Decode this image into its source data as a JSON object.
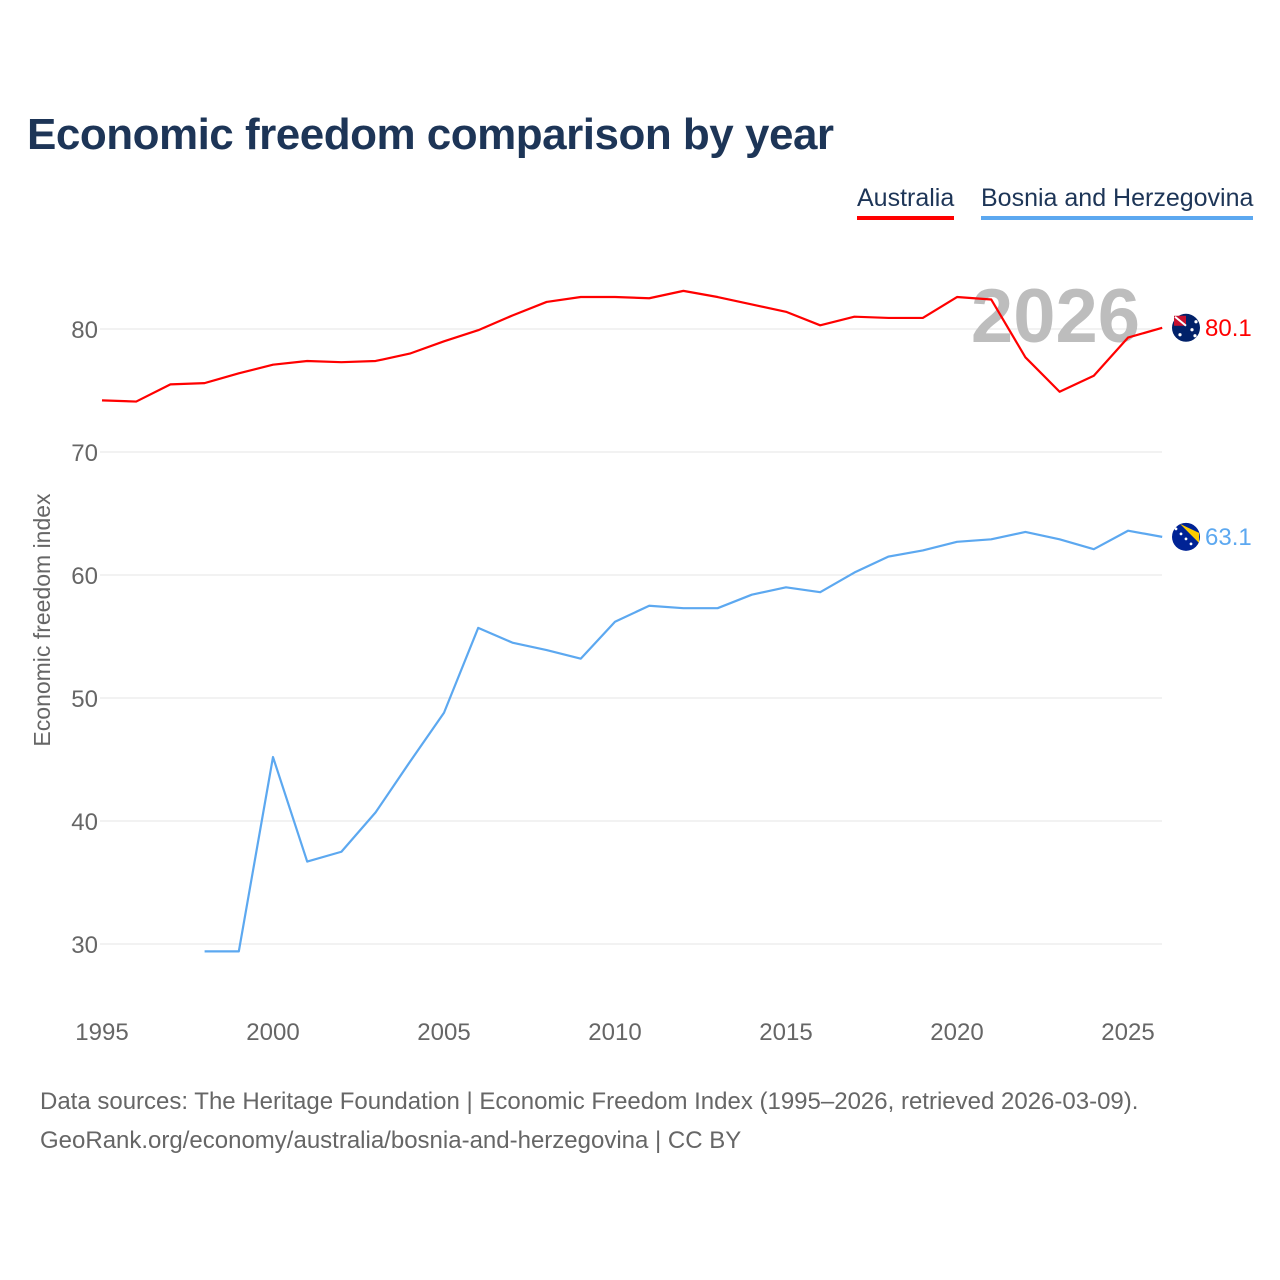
{
  "chart_data": {
    "type": "line",
    "title": "Economic freedom comparison by year",
    "ylabel": "Economic freedom index",
    "xlabel": "",
    "xlim": [
      1995,
      2026
    ],
    "ylim": [
      25,
      87
    ],
    "yticks": [
      30,
      40,
      50,
      60,
      70,
      80
    ],
    "xticks": [
      1995,
      2000,
      2005,
      2010,
      2015,
      2020,
      2025
    ],
    "grid": true,
    "legend_position": "top-right",
    "year_watermark": "2026",
    "series": [
      {
        "name": "Australia",
        "color": "#ff0000",
        "end_label": "80.1",
        "flag": "australia-flag",
        "x": [
          1995,
          1996,
          1997,
          1998,
          1999,
          2000,
          2001,
          2002,
          2003,
          2004,
          2005,
          2006,
          2007,
          2008,
          2009,
          2010,
          2011,
          2012,
          2013,
          2014,
          2015,
          2016,
          2017,
          2018,
          2019,
          2020,
          2021,
          2022,
          2023,
          2024,
          2025,
          2026
        ],
        "values": [
          74.2,
          74.1,
          75.5,
          75.6,
          76.4,
          77.1,
          77.4,
          77.3,
          77.4,
          78.0,
          79.0,
          79.9,
          81.1,
          82.2,
          82.6,
          82.6,
          82.5,
          83.1,
          82.6,
          82.0,
          81.4,
          80.3,
          81.0,
          80.9,
          80.9,
          82.6,
          82.4,
          77.7,
          74.9,
          76.2,
          79.3,
          80.1
        ]
      },
      {
        "name": "Bosnia and Herzegovina",
        "color": "#5ca8f0",
        "end_label": "63.1",
        "flag": "bosnia-flag",
        "x": [
          1998,
          1999,
          2000,
          2001,
          2002,
          2003,
          2004,
          2005,
          2006,
          2007,
          2008,
          2009,
          2010,
          2011,
          2012,
          2013,
          2014,
          2015,
          2016,
          2017,
          2018,
          2019,
          2020,
          2021,
          2022,
          2023,
          2024,
          2025,
          2026
        ],
        "values": [
          29.4,
          29.4,
          45.2,
          36.7,
          37.5,
          40.7,
          44.8,
          48.8,
          55.7,
          54.5,
          53.9,
          53.2,
          56.2,
          57.5,
          57.3,
          57.3,
          58.4,
          59.0,
          58.6,
          60.2,
          61.5,
          62.0,
          62.7,
          62.9,
          63.5,
          62.9,
          62.1,
          63.6,
          63.1
        ]
      }
    ]
  },
  "footer": {
    "line1": "Data sources: The Heritage Foundation | Economic Freedom Index (1995–2026, retrieved 2026-03-09).",
    "line2": "GeoRank.org/economy/australia/bosnia-and-herzegovina | CC BY"
  }
}
